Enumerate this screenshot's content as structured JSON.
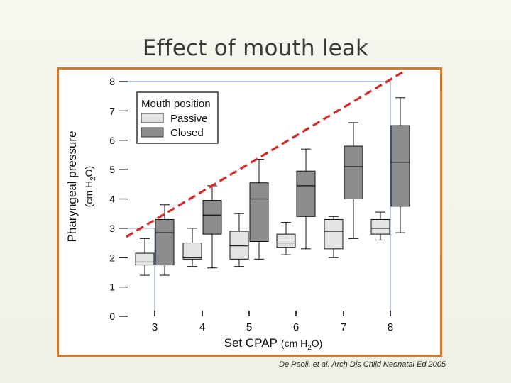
{
  "slide": {
    "title": "Effect of mouth leak",
    "citation": "De Paoli, et al. Arch Dis Child Neonatal Ed 2005"
  },
  "chart_data": {
    "type": "box",
    "ylabel_main": "Pharyngeal pressure",
    "ylabel_unit_pre": "(cm H",
    "ylabel_unit_sub": "2",
    "ylabel_unit_post": "O)",
    "xlabel_main": "Set CPAP",
    "xlabel_unit_pre": "(cm H",
    "xlabel_unit_sub": "2",
    "xlabel_unit_post": "O)",
    "ylim": [
      0,
      8
    ],
    "yticks": [
      "0",
      "1",
      "2",
      "3",
      "4",
      "5",
      "6",
      "7",
      "8"
    ],
    "categories": [
      "3",
      "4",
      "5",
      "6",
      "7",
      "8"
    ],
    "legend": {
      "title": "Mouth position",
      "placement": "top-left",
      "entries": [
        {
          "label": "Passive",
          "color": "#e4e4e4"
        },
        {
          "label": "Closed",
          "color": "#8c8c8c"
        }
      ]
    },
    "series": [
      {
        "name": "Passive",
        "color": "#e4e4e4",
        "boxes": [
          {
            "min": 1.4,
            "q1": 1.75,
            "median": 1.85,
            "q3": 2.15,
            "max": 2.65
          },
          {
            "min": 1.7,
            "q1": 1.95,
            "median": 2.0,
            "q3": 2.5,
            "max": 3.0
          },
          {
            "min": 1.7,
            "q1": 1.95,
            "median": 2.4,
            "q3": 2.9,
            "max": 3.5
          },
          {
            "min": 2.1,
            "q1": 2.35,
            "median": 2.5,
            "q3": 2.8,
            "max": 3.2
          },
          {
            "min": 2.0,
            "q1": 2.3,
            "median": 2.9,
            "q3": 3.3,
            "max": 3.4
          },
          {
            "min": 2.6,
            "q1": 2.8,
            "median": 3.0,
            "q3": 3.3,
            "max": 3.55
          }
        ]
      },
      {
        "name": "Closed",
        "color": "#8c8c8c",
        "boxes": [
          {
            "min": 1.4,
            "q1": 1.75,
            "median": 2.85,
            "q3": 3.3,
            "max": 3.8
          },
          {
            "min": 1.65,
            "q1": 2.8,
            "median": 3.45,
            "q3": 3.95,
            "max": 4.45
          },
          {
            "min": 1.95,
            "q1": 2.55,
            "median": 4.0,
            "q3": 4.55,
            "max": 5.35
          },
          {
            "min": 2.3,
            "q1": 3.4,
            "median": 4.45,
            "q3": 4.95,
            "max": 5.7
          },
          {
            "min": 2.65,
            "q1": 4.0,
            "median": 5.1,
            "q3": 5.8,
            "max": 6.6
          },
          {
            "min": 2.85,
            "q1": 3.75,
            "median": 5.25,
            "q3": 6.5,
            "max": 7.45
          }
        ]
      }
    ],
    "reference_lines": [
      {
        "style": "thin-blue",
        "from": {
          "x": "3",
          "y": 3
        },
        "to": {
          "x": "3",
          "y": 0
        }
      },
      {
        "style": "thin-blue",
        "from": {
          "x": "8",
          "y": 8
        },
        "to": {
          "x": "8",
          "y": 0
        }
      },
      {
        "style": "thin-blue",
        "from": {
          "x": "0",
          "y": 3
        },
        "to": {
          "x": "3",
          "y": 3
        }
      },
      {
        "style": "thin-blue",
        "from": {
          "x": "0",
          "y": 8
        },
        "to": {
          "x": "8",
          "y": 8
        }
      }
    ],
    "trend_line": {
      "style": "dashed",
      "color": "#d42b2b",
      "from": {
        "x": "3",
        "y": 3
      },
      "to": {
        "x": "8",
        "y": 8
      }
    },
    "grid": false
  }
}
